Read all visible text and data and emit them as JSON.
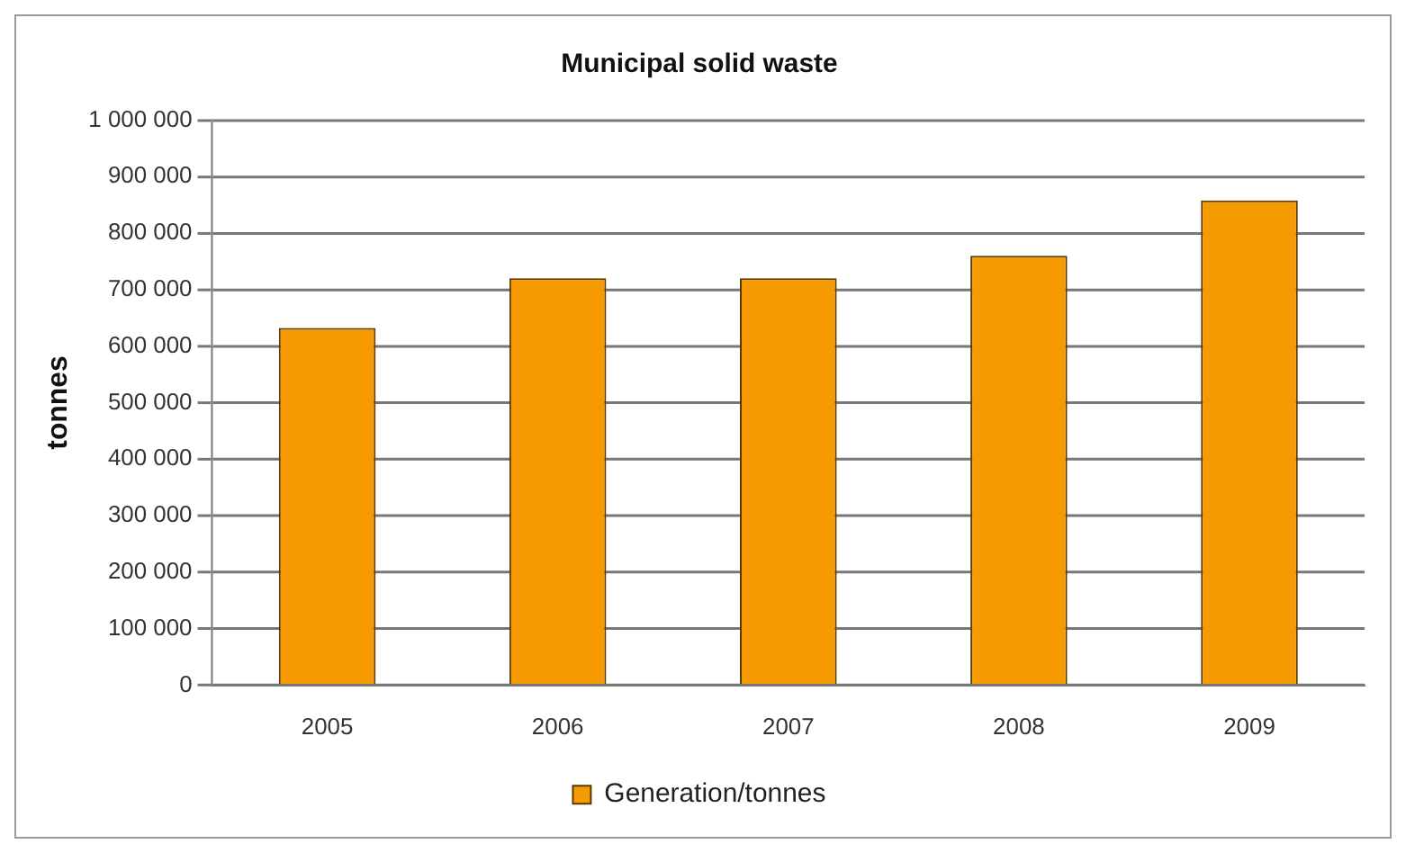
{
  "chart_data": {
    "type": "bar",
    "title": "Municipal solid waste",
    "ylabel": "tonnes",
    "categories": [
      "2005",
      "2006",
      "2007",
      "2008",
      "2009"
    ],
    "series": [
      {
        "name": "Generation/tonnes",
        "color": "#f59a00",
        "values": [
          632000,
          720000,
          720000,
          760000,
          858000
        ]
      }
    ],
    "ylim": [
      0,
      1000000
    ],
    "yticks": [
      {
        "value": 0,
        "label": "0"
      },
      {
        "value": 100000,
        "label": "100 000"
      },
      {
        "value": 200000,
        "label": "200 000"
      },
      {
        "value": 300000,
        "label": "300 000"
      },
      {
        "value": 400000,
        "label": "400 000"
      },
      {
        "value": 500000,
        "label": "500 000"
      },
      {
        "value": 600000,
        "label": "600 000"
      },
      {
        "value": 700000,
        "label": "700 000"
      },
      {
        "value": 800000,
        "label": "800 000"
      },
      {
        "value": 900000,
        "label": "900 000"
      },
      {
        "value": 1000000,
        "label": "1 000 000"
      }
    ],
    "grid": "y",
    "legend": "bottom"
  }
}
